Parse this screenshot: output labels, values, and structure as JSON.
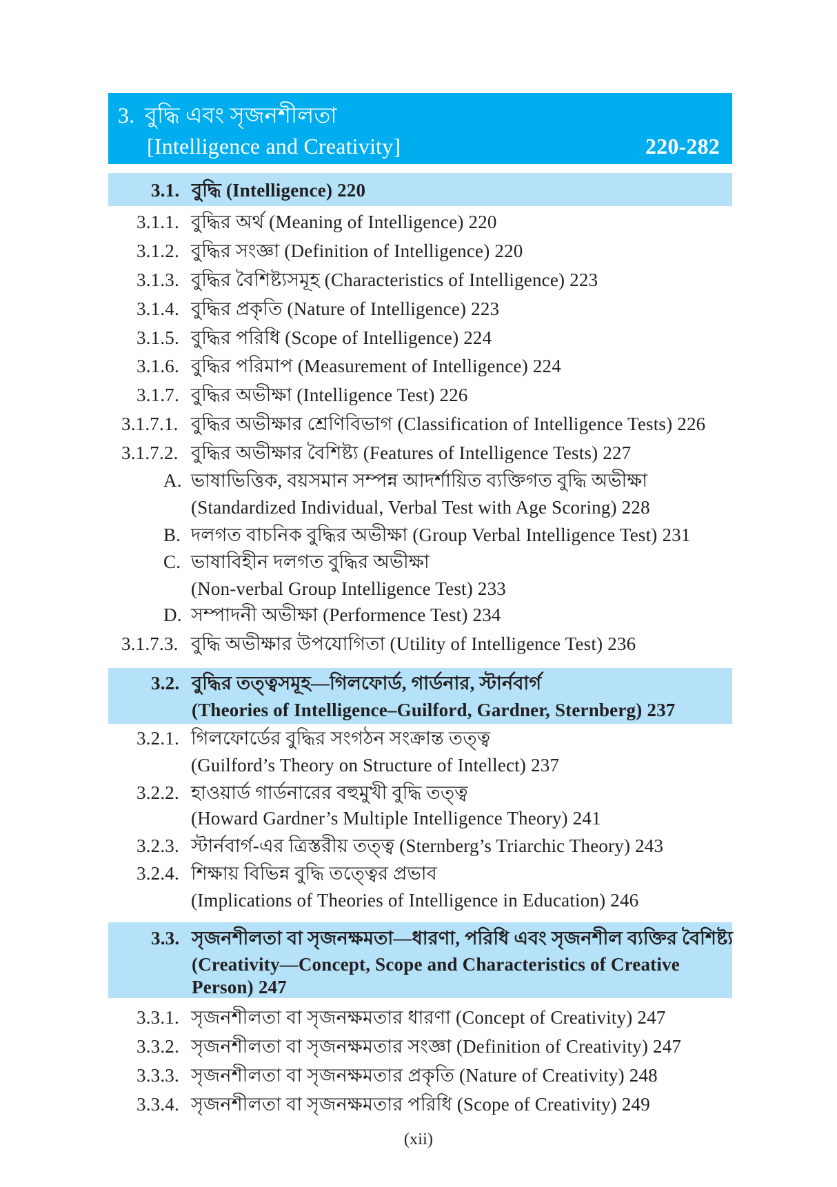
{
  "chapter": {
    "number": "3.",
    "title_bn": "বুদ্ধি এবং সৃজনশীলতা",
    "title_en": "[Intelligence and Creativity]",
    "pages": "220-282",
    "color": "#00aeef"
  },
  "section_color": "#b5e2f8",
  "entries": [
    {
      "num": "3.1.",
      "text": "বুদ্ধি (Intelligence) 220",
      "kind": "section"
    },
    {
      "num": "3.1.1.",
      "text": "বুদ্ধির অর্থ (Meaning of Intelligence) 220"
    },
    {
      "num": "3.1.2.",
      "text": "বুদ্ধির সংজ্ঞা (Definition of Intelligence) 220"
    },
    {
      "num": "3.1.3.",
      "text": "বুদ্ধির বৈশিষ্ট্যসমূহ (Characteristics of Intelligence) 223"
    },
    {
      "num": "3.1.4.",
      "text": "বুদ্ধির প্রকৃতি (Nature of Intelligence) 223"
    },
    {
      "num": "3.1.5.",
      "text": "বুদ্ধির পরিধি (Scope of Intelligence) 224"
    },
    {
      "num": "3.1.6.",
      "text": "বুদ্ধির পরিমাপ (Measurement of Intelligence) 224"
    },
    {
      "num": "3.1.7.",
      "text": "বুদ্ধির অভীক্ষা (Intelligence Test) 226"
    },
    {
      "num": "3.1.7.1.",
      "text": "বুদ্ধির অভীক্ষার শ্রেণিবিভাগ (Classification of Intelligence Tests) 226"
    },
    {
      "num": "3.1.7.2.",
      "text": "বুদ্ধির অভীক্ষার বৈশিষ্ট্য (Features of Intelligence Tests) 227"
    },
    {
      "num": "A.",
      "text": "ভাষাভিত্তিক, বয়সমান সম্পন্ন আদর্শায়িত ব্যক্তিগত বুদ্ধি অভীক্ষা",
      "text2": "(Standardized Individual, Verbal Test with Age Scoring) 228"
    },
    {
      "num": "B.",
      "text": "দলগত বাচনিক বুদ্ধির অভীক্ষা (Group Verbal Intelligence Test) 231"
    },
    {
      "num": "C.",
      "text": "ভাষাবিহীন দলগত বুদ্ধির অভীক্ষা",
      "text2": "(Non-verbal Group Intelligence Test) 233"
    },
    {
      "num": "D.",
      "text": "সম্পাদনী অভীক্ষা (Performence Test) 234"
    },
    {
      "num": "3.1.7.3.",
      "text": "বুদ্ধি অভীক্ষার উপযোগিতা (Utility of Intelligence Test) 236"
    },
    {
      "num": "3.2.",
      "text": "বুদ্ধির তত্ত্বসমূহ—গিলফোর্ড, গার্ডনার, স্টার্নবার্গ",
      "text2": "(Theories of Intelligence–Guilford, Gardner, Sternberg)  237",
      "kind": "section"
    },
    {
      "num": "3.2.1.",
      "text": "গিলফোর্ডের বুদ্ধির সংগঠন সংক্রান্ত তত্ত্ব",
      "text2": "(Guilford’s Theory on Structure of Intellect) 237"
    },
    {
      "num": "3.2.2.",
      "text": "হাওয়ার্ড গার্ডনারের বহুমুখী বুদ্ধি তত্ত্ব",
      "text2": "(Howard Gardner’s Multiple Intelligence Theory) 241"
    },
    {
      "num": "3.2.3.",
      "text": "স্টার্নবার্গ-এর ত্রিস্তরীয় তত্ত্ব (Sternberg’s Triarchic Theory) 243"
    },
    {
      "num": "3.2.4.",
      "text": "শিক্ষায় বিভিন্ন বুদ্ধি তত্ত্বের প্রভাব",
      "text2": "(Implications of Theories of Intelligence in Education) 246"
    },
    {
      "num": "3.3.",
      "text": "সৃজনশীলতা বা সৃজনক্ষমতা—ধারণা, পরিধি এবং সৃজনশীল ব্যক্তির বৈশিষ্ট্য",
      "text2": "(Creativity—Concept, Scope and Characteristics of Creative",
      "text3": "Person) 247",
      "kind": "section"
    },
    {
      "num": "3.3.1.",
      "text": "সৃজনশীলতা বা সৃজনক্ষমতার ধারণা (Concept of Creativity) 247"
    },
    {
      "num": "3.3.2.",
      "text": "সৃজনশীলতা বা সৃজনক্ষমতার সংজ্ঞা (Definition of Creativity)  247"
    },
    {
      "num": "3.3.3.",
      "text": "সৃজনশীলতা বা সৃজনক্ষমতার প্রকৃতি (Nature of Creativity) 248"
    },
    {
      "num": "3.3.4.",
      "text": "সৃজনশীলতা বা সৃজনক্ষমতার পরিধি (Scope of Creativity) 249"
    }
  ],
  "footer": {
    "page_number": "(xii)"
  }
}
